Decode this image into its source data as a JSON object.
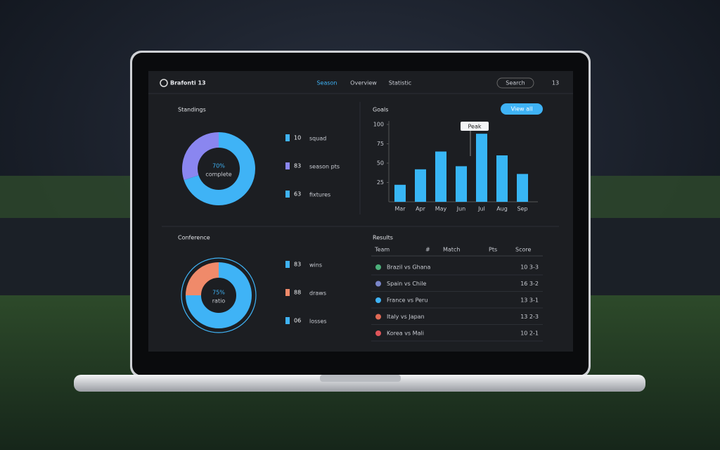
{
  "header": {
    "logo": "Brafonti 13",
    "nav": [
      "Season",
      "Overview",
      "Statistic"
    ],
    "search": "Search",
    "badge": "13"
  },
  "standings_stats": [
    {
      "value": "10",
      "label": "squad"
    },
    {
      "value": "83",
      "label": "season pts"
    },
    {
      "value": "63",
      "label": "fixtures"
    }
  ],
  "conference_stats": [
    {
      "value": "83",
      "label": "wins"
    },
    {
      "value": "88",
      "label": "draws"
    },
    {
      "value": "06",
      "label": "losses"
    }
  ],
  "chart_data": [
    {
      "type": "pie",
      "title": "Standings",
      "center_label": "70%",
      "center_sub": "complete",
      "values": [
        70,
        30
      ],
      "colors": [
        "#3fb3f6",
        "#8a86f0"
      ]
    },
    {
      "type": "bar",
      "title": "Goals",
      "button": "View all",
      "tooltip": "Peak",
      "categories": [
        "Mar",
        "Apr",
        "May",
        "Jun",
        "Jul",
        "Aug",
        "Sep"
      ],
      "values": [
        22,
        42,
        65,
        46,
        88,
        60,
        36
      ],
      "color": "#38b6f5",
      "ylim": [
        0,
        100
      ],
      "yticks": [
        25,
        50,
        75,
        100
      ],
      "grid": false
    },
    {
      "type": "pie",
      "title": "Conference",
      "center_label": "75%",
      "center_sub": "ratio",
      "values": [
        75,
        25
      ],
      "colors": [
        "#3fb3f6",
        "#f08a6a"
      ]
    }
  ],
  "table": {
    "title": "Results",
    "columns": [
      "Team",
      "#",
      "Match",
      "Pts",
      "Score"
    ],
    "rows": [
      [
        "Brazil vs Ghana",
        "10 3-3"
      ],
      [
        "Spain vs Chile",
        "16 3-2"
      ],
      [
        "France vs Peru",
        "13 3-1"
      ],
      [
        "Italy vs Japan",
        "13 2-3"
      ],
      [
        "Korea vs Mali",
        "10 2-1"
      ]
    ]
  }
}
